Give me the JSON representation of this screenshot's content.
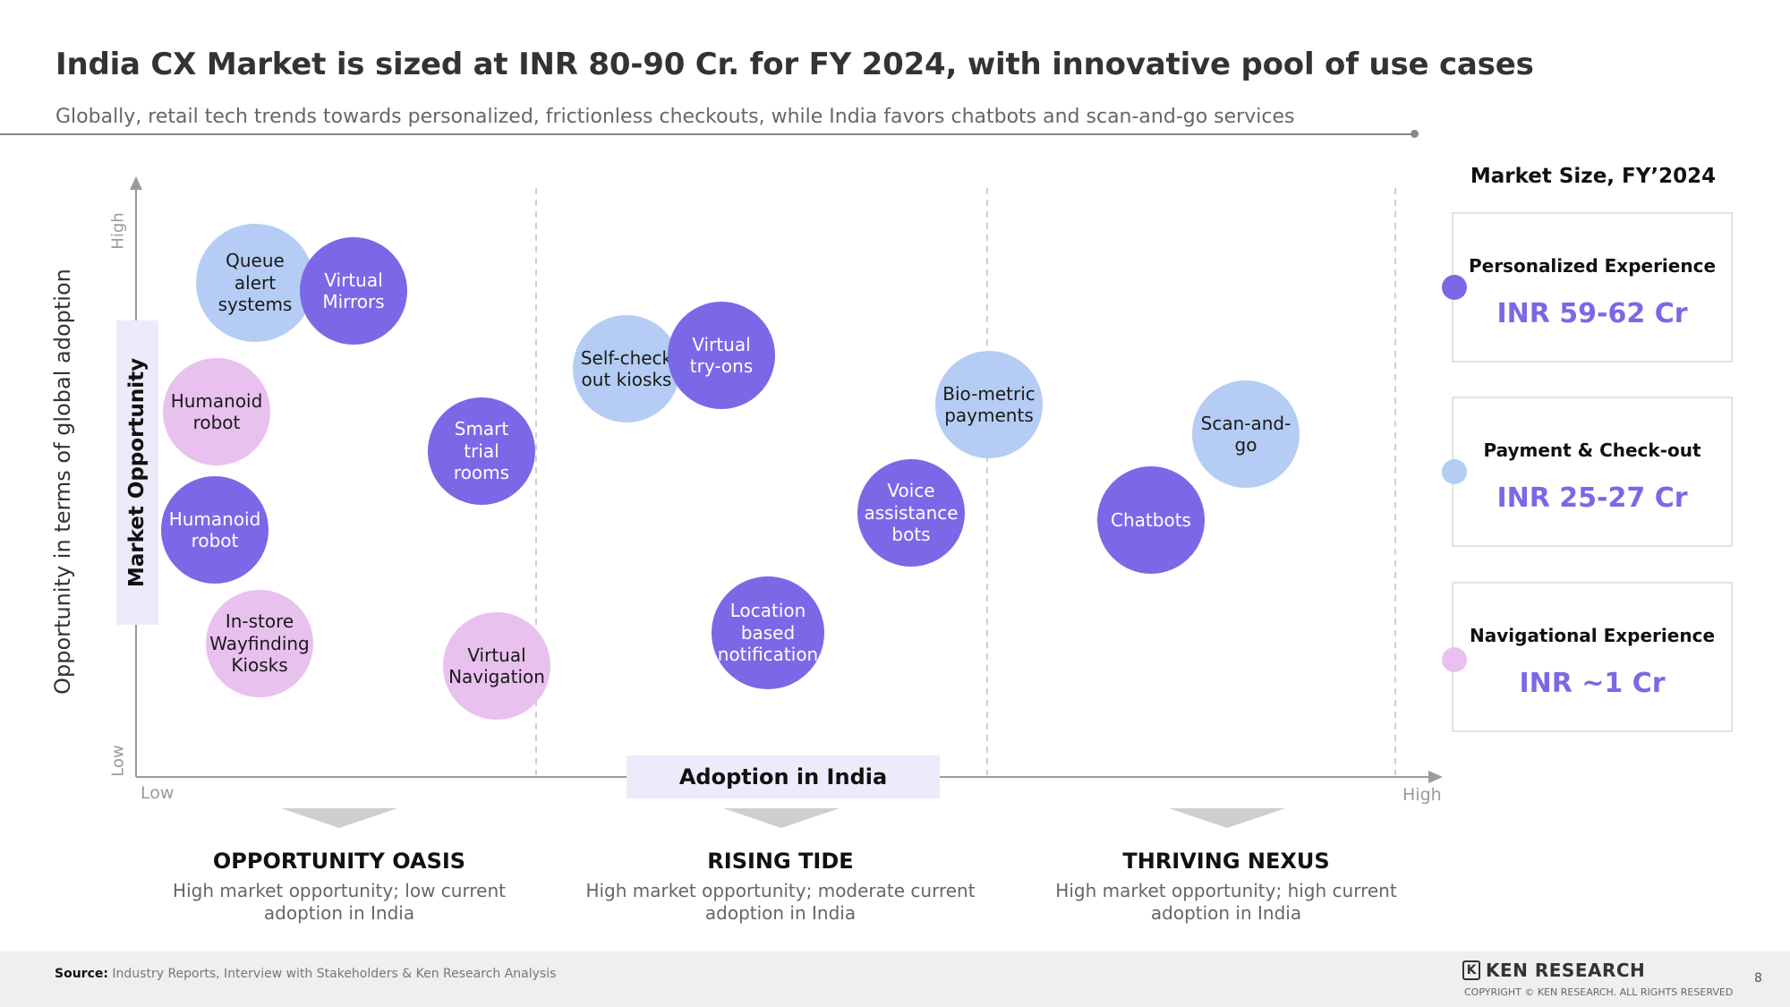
{
  "title": "India CX Market is sized at INR 80-90 Cr. for FY 2024, with innovative pool of use cases",
  "subtitle": "Globally, retail tech trends towards personalized, frictionless checkouts, while India favors chatbots and scan-and-go services",
  "axes": {
    "y_outer_label": "Opportunity in terms of global adoption",
    "y_label": "Market Opportunity",
    "y_high": "High",
    "y_low": "Low",
    "x_label": "Adoption in India",
    "x_low": "Low",
    "x_high": "High"
  },
  "colors": {
    "personalized": "#7b68e6",
    "payment": "#b5cdf4",
    "navigational": "#e8c1ee",
    "value_text": "#7b68e6"
  },
  "bubbles": [
    {
      "label": "Queue alert systems",
      "category": "payment"
    },
    {
      "label": "Virtual Mirrors",
      "category": "personalized"
    },
    {
      "label": "Humanoid robot",
      "category": "navigational"
    },
    {
      "label": "Humanoid robot",
      "category": "personalized"
    },
    {
      "label": "In-store Wayfinding Kiosks",
      "category": "navigational"
    },
    {
      "label": "Smart trial rooms",
      "category": "personalized"
    },
    {
      "label": "Virtual Navigation",
      "category": "navigational"
    },
    {
      "label": "Self-check out kiosks",
      "category": "payment"
    },
    {
      "label": "Virtual try-ons",
      "category": "personalized"
    },
    {
      "label": "Location based notification",
      "category": "personalized"
    },
    {
      "label": "Bio-metric payments",
      "category": "payment"
    },
    {
      "label": "Voice assistance bots",
      "category": "personalized"
    },
    {
      "label": "Scan-and-go",
      "category": "payment"
    },
    {
      "label": "Chatbots",
      "category": "personalized"
    }
  ],
  "zones": [
    {
      "title": "OPPORTUNITY OASIS",
      "desc_line1": "High market opportunity; low current",
      "desc_line2": "adoption in India"
    },
    {
      "title": "RISING TIDE",
      "desc_line1": "High market opportunity; moderate current",
      "desc_line2": "adoption in India"
    },
    {
      "title": "THRIVING NEXUS",
      "desc_line1": "High market opportunity; high current",
      "desc_line2": "adoption in India"
    }
  ],
  "market_size": {
    "title": "Market Size, FY’2024",
    "items": [
      {
        "label": "Personalized Experience",
        "value": "INR 59-62 Cr"
      },
      {
        "label": "Payment & Check-out",
        "value": "INR 25-27 Cr"
      },
      {
        "label": "Navigational Experience",
        "value": "INR ~1 Cr"
      }
    ]
  },
  "footer": {
    "source_label": "Source:",
    "source_text": " Industry Reports, Interview with Stakeholders & Ken Research Analysis",
    "logo_mark": "K",
    "logo_text": "KEN RESEARCH",
    "copyright": "COPYRIGHT © KEN RESEARCH. ALL RIGHTS RESERVED",
    "page_number": "8"
  }
}
